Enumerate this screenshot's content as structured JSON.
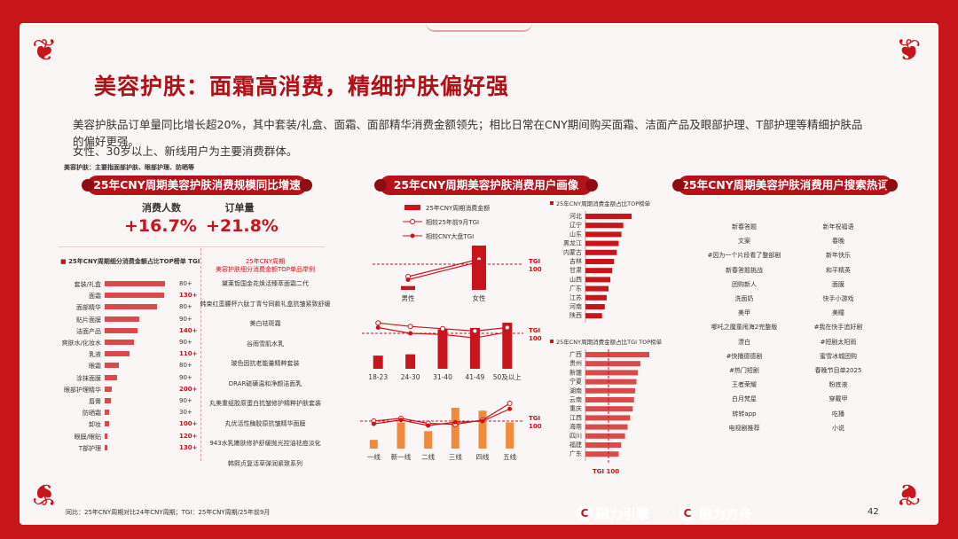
{
  "header": {
    "title": "美容护肤：面霜高消费，精细护肤偏好强",
    "para1": "美容护肤品订单量同比增长超20%，其中套装/礼盒、面霜、面部精华消费金额领先；相比日常在CNY期间购买面霜、洁面产品及眼部护理、T部护理等精细护肤品的偏好更强。",
    "para2": "女性、30岁以上、新线用户为主要消费群体。",
    "subnote": "美容护肤：主要指面部护肤、眼部护理、防晒等"
  },
  "sections": {
    "left": "25年CNY周期美容护肤消费规模同比增速",
    "middle": "25年CNY周期美容护肤消费用户画像",
    "right": "25年CNY周期美容护肤消费用户搜索热词"
  },
  "kpis": [
    {
      "label": "消费人数",
      "value": "+16.7%"
    },
    {
      "label": "订单量",
      "value": "+21.8%"
    }
  ],
  "category_chart": {
    "title": "25年CNY周期细分消费金额占比TOP榜单",
    "tgi_label": "TGI",
    "rows": [
      {
        "name": "套装/礼盒",
        "share": 100,
        "tgi": "80+",
        "hi": false
      },
      {
        "name": "面霜",
        "share": 98,
        "tgi": "130+",
        "hi": true
      },
      {
        "name": "面部精华",
        "share": 86,
        "tgi": "80+",
        "hi": false
      },
      {
        "name": "贴片面膜",
        "share": 58,
        "tgi": "90+",
        "hi": false
      },
      {
        "name": "洁面产品",
        "share": 55,
        "tgi": "140+",
        "hi": true
      },
      {
        "name": "爽肤水/化妆水",
        "share": 48,
        "tgi": "90+",
        "hi": false
      },
      {
        "name": "乳液",
        "share": 41,
        "tgi": "110+",
        "hi": true
      },
      {
        "name": "眼霜",
        "share": 24,
        "tgi": "80+",
        "hi": false
      },
      {
        "name": "涂抹面膜",
        "share": 20,
        "tgi": "90+",
        "hi": false
      },
      {
        "name": "眼部护理精华",
        "share": 12,
        "tgi": "200+",
        "hi": true
      },
      {
        "name": "唇膏",
        "share": 10,
        "tgi": "90+",
        "hi": false
      },
      {
        "name": "防晒霜",
        "share": 8,
        "tgi": "30+",
        "hi": false
      },
      {
        "name": "卸妆",
        "share": 7,
        "tgi": "100+",
        "hi": true
      },
      {
        "name": "眼膜/眼贴",
        "share": 5,
        "tgi": "120+",
        "hi": true
      },
      {
        "name": "T部护理",
        "share": 4,
        "tgi": "130+",
        "hi": true
      }
    ]
  },
  "products": {
    "title_line1": "25年CNY周期",
    "title_line2": "美容护肤细分消费金额TOP单品举例",
    "items": [
      "黛莱皙国金花焕活臻萃面霜二代",
      "韩束红蛮腰杯六肽丁青兮同款礼盒抗皱紧致舒缓",
      "美白祛斑霜",
      "谷雨雪肌水乳",
      "玻色因抗老能量精粹套装",
      "DRAR硫磺温和净颜洁面乳",
      "丸美重组胶原蛋白抗皱修护精粹护肤套装",
      "丸优活性酶胶原抗皱精华面膜",
      "943水乳嫩肤修护舒缓抛光控油祛痘淡化",
      "韩熙贞复活草弹润紧致系列"
    ]
  },
  "profile": {
    "legend": [
      "25年CNY周期消费金额",
      "相较25年前9月TGI",
      "相较CNY大盘TGI"
    ],
    "tgi_tag": "TGI",
    "tgi_num": "100",
    "gender": {
      "categories": [
        "男性",
        "女性"
      ],
      "values": [
        8,
        92
      ],
      "tgi_9m": [
        80,
        108
      ],
      "tgi_cny": [
        75,
        104
      ]
    },
    "age": {
      "categories": [
        "18-23",
        "24-30",
        "31-40",
        "41-49",
        "50及以上"
      ],
      "values": [
        20,
        22,
        60,
        62,
        70
      ],
      "tgi_9m": [
        118,
        112,
        108,
        104,
        110
      ],
      "tgi_cny": [
        110,
        100,
        98,
        92,
        102
      ]
    },
    "city": {
      "categories": [
        "一线",
        "新一线",
        "二线",
        "三线",
        "四线",
        "五线"
      ],
      "values": [
        15,
        45,
        30,
        70,
        65,
        45
      ],
      "tgi_9m": [
        100,
        105,
        96,
        94,
        102,
        132
      ],
      "tgi_cny": [
        95,
        102,
        92,
        98,
        100,
        122
      ]
    }
  },
  "provinces": {
    "top_title": "25年CNY周期消费金额占比TOP榜单",
    "top": [
      {
        "name": "河北",
        "v": 100
      },
      {
        "name": "辽宁",
        "v": 82
      },
      {
        "name": "山东",
        "v": 78
      },
      {
        "name": "黑龙江",
        "v": 72
      },
      {
        "name": "内蒙古",
        "v": 68
      },
      {
        "name": "吉林",
        "v": 62
      },
      {
        "name": "甘肃",
        "v": 58
      },
      {
        "name": "山西",
        "v": 54
      },
      {
        "name": "广东",
        "v": 50
      },
      {
        "name": "江苏",
        "v": 46
      },
      {
        "name": "河南",
        "v": 42
      },
      {
        "name": "陕西",
        "v": 36
      }
    ],
    "tgi_title": "25年CNY周期消费金额占比TGI TOP榜单",
    "tgi": [
      {
        "name": "广西",
        "v": 100
      },
      {
        "name": "贵州",
        "v": 86
      },
      {
        "name": "新疆",
        "v": 82
      },
      {
        "name": "宁夏",
        "v": 80
      },
      {
        "name": "湖南",
        "v": 78
      },
      {
        "name": "云南",
        "v": 76
      },
      {
        "name": "重庆",
        "v": 74
      },
      {
        "name": "江西",
        "v": 70
      },
      {
        "name": "海南",
        "v": 66
      },
      {
        "name": "四川",
        "v": 62
      },
      {
        "name": "福建",
        "v": 56
      },
      {
        "name": "广东",
        "v": 52
      }
    ],
    "tgi_bottom": "TGI 100"
  },
  "keywords": {
    "left": [
      "新春答题",
      "文案",
      "#因为一个片段看了整部剧",
      "新春答题挑战",
      "团购新人",
      "洗面奶",
      "美甲",
      "哪吒之魔童闹海2完整版",
      "漂白",
      "#快播德德剧",
      "#热门短剧",
      "王者荣耀",
      "白月梵星",
      "转转app",
      "电视剧推荐"
    ],
    "right": [
      "新年祝福语",
      "春晚",
      "新年快乐",
      "和平精英",
      "面膜",
      "快手小游戏",
      "美瞳",
      "#我在快手追好剧",
      "#短剧太阳雨",
      "蜜雪冰城团购",
      "春晚节目单2025",
      "粉底液",
      "穿戴甲",
      "吃播",
      "小说"
    ]
  },
  "footer": {
    "note": "同比：25年CNY周期对比24年CNY周期；TGI：25年CNY周期/25年前9月",
    "brand1": "磁力引擎",
    "dot": "·",
    "brand2": "磁力方舟",
    "page": "42"
  },
  "colors": {
    "accent": "#c8141b",
    "bar": "#d94a4a",
    "orange": "#f08a3c"
  }
}
